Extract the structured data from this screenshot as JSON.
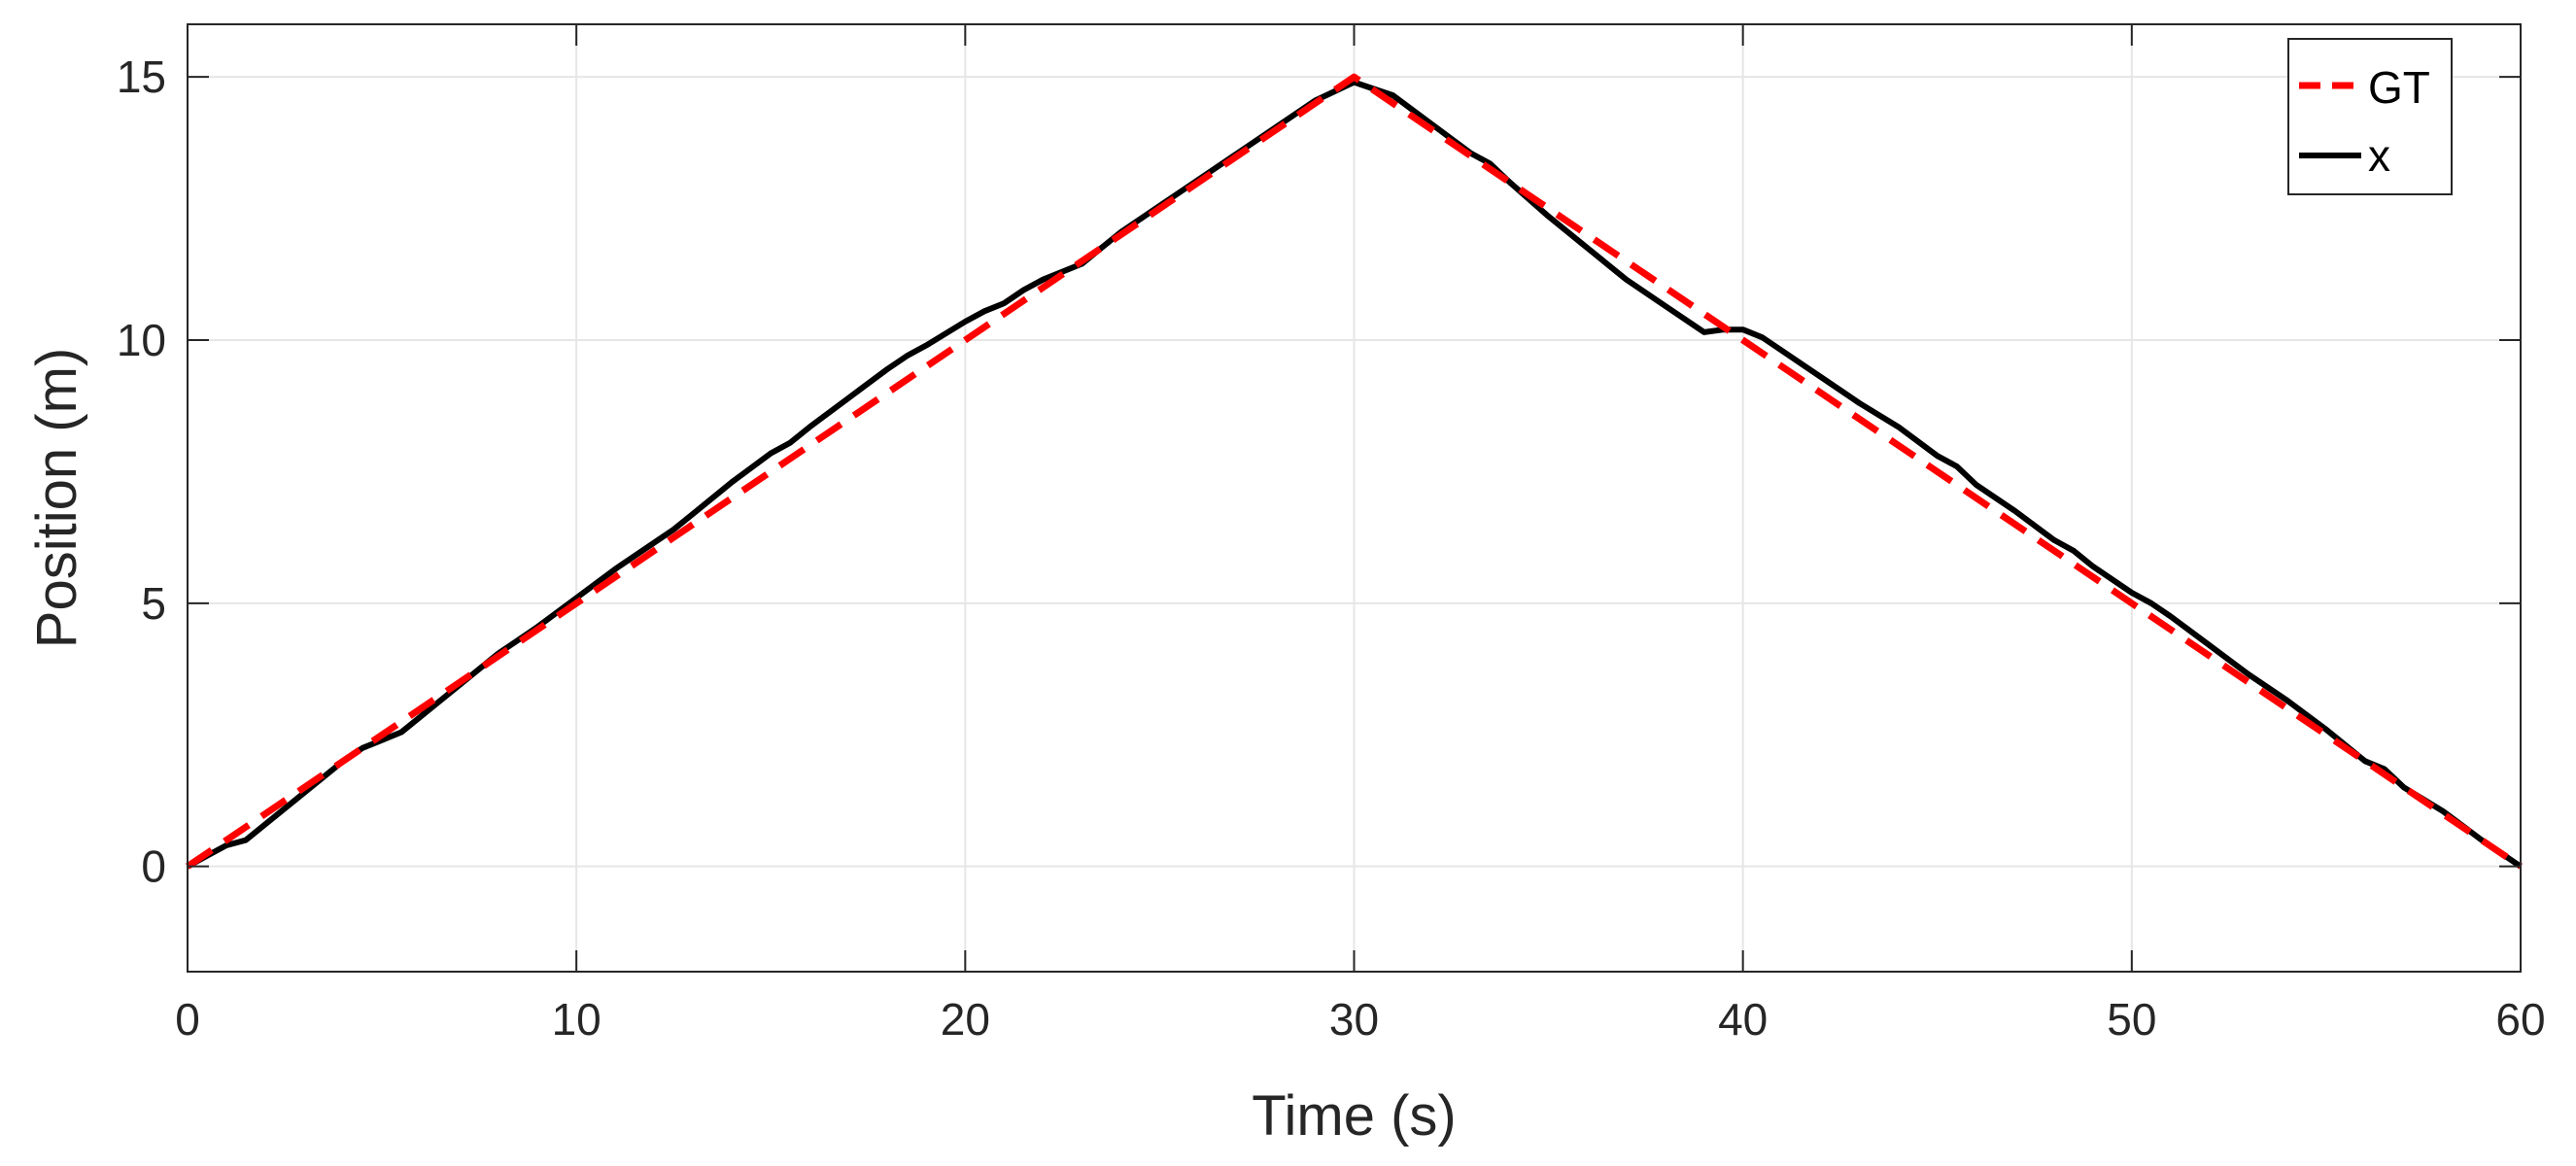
{
  "chart_data": {
    "type": "line",
    "title": "",
    "xlabel": "Time (s)",
    "ylabel": "Position (m)",
    "xlim": [
      0,
      60
    ],
    "ylim": [
      -2,
      16
    ],
    "xticks": [
      0,
      10,
      20,
      30,
      40,
      50,
      60
    ],
    "yticks": [
      0,
      5,
      10,
      15
    ],
    "xtick_labels": [
      "0",
      "10",
      "20",
      "30",
      "40",
      "50",
      "60"
    ],
    "ytick_labels": [
      "0",
      "5",
      "10",
      "15"
    ],
    "grid": true,
    "legend_position": "top-right",
    "series": [
      {
        "name": "GT",
        "color": "#ff0000",
        "style": "dashed",
        "x": [
          0,
          30,
          60
        ],
        "y": [
          0,
          15,
          0
        ]
      },
      {
        "name": "x",
        "color": "#000000",
        "style": "solid",
        "x": [
          0,
          0.5,
          1,
          1.5,
          2,
          3,
          4,
          4.5,
          5,
          5.5,
          6,
          7,
          8,
          8.5,
          9,
          10,
          11,
          12,
          12.5,
          13,
          14,
          15,
          15.5,
          16,
          17,
          18,
          18.5,
          19,
          20,
          20.5,
          21,
          21.5,
          22,
          23,
          23.5,
          24,
          25,
          25.5,
          26,
          27,
          28,
          29,
          30,
          31,
          32,
          33,
          33.5,
          34,
          35,
          36,
          37,
          38,
          39,
          39.5,
          40,
          40.5,
          41,
          42,
          43,
          44,
          45,
          45.5,
          46,
          47,
          48,
          48.5,
          49,
          50,
          50.5,
          51,
          52,
          53,
          54,
          55,
          56,
          56.5,
          57,
          58,
          59,
          59.5,
          60
        ],
        "y": [
          0,
          0.2,
          0.4,
          0.5,
          0.8,
          1.4,
          2.0,
          2.25,
          2.4,
          2.55,
          2.85,
          3.45,
          4.05,
          4.3,
          4.55,
          5.1,
          5.65,
          6.15,
          6.4,
          6.7,
          7.3,
          7.85,
          8.05,
          8.35,
          8.9,
          9.45,
          9.7,
          9.9,
          10.35,
          10.55,
          10.7,
          10.95,
          11.15,
          11.45,
          11.75,
          12.05,
          12.55,
          12.8,
          13.05,
          13.55,
          14.05,
          14.55,
          14.9,
          14.65,
          14.1,
          13.55,
          13.35,
          13.0,
          12.35,
          11.75,
          11.15,
          10.65,
          10.15,
          10.2,
          10.2,
          10.05,
          9.8,
          9.3,
          8.8,
          8.35,
          7.8,
          7.6,
          7.25,
          6.75,
          6.2,
          6.0,
          5.7,
          5.2,
          5.0,
          4.75,
          4.2,
          3.65,
          3.15,
          2.6,
          2.0,
          1.85,
          1.5,
          1.05,
          0.5,
          0.25,
          0
        ]
      }
    ]
  },
  "colors": {
    "gt_line": "#ff0000",
    "x_line": "#000000",
    "grid": "#e6e6e6",
    "axes": "#262626"
  }
}
